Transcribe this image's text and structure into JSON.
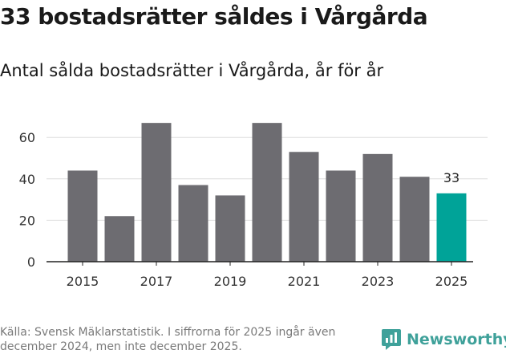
{
  "header": {
    "title": "33 bostadsrätter såldes i Vårgårda",
    "subtitle": "Antal sålda bostadsrätter i Vårgårda, år för år"
  },
  "footer": {
    "source": "Källa: Svensk Mäklarstatistik. I siffrorna för 2025 ingår även december 2024, men inte december 2025.",
    "brand": "Newsworthy"
  },
  "colors": {
    "bar": "#6d6c71",
    "highlight": "#00a398",
    "grid": "#dddddd",
    "brand": "#3fa19a"
  },
  "icons": {
    "brand_logo": "newsworthy-logo-icon"
  },
  "chart_data": {
    "type": "bar",
    "title": "33 bostadsrätter såldes i Vårgårda",
    "subtitle": "Antal sålda bostadsrätter i Vårgårda, år för år",
    "xlabel": "",
    "ylabel": "",
    "categories": [
      2015,
      2016,
      2017,
      2018,
      2019,
      2020,
      2021,
      2022,
      2023,
      2024,
      2025
    ],
    "values": [
      44,
      22,
      67,
      37,
      32,
      67,
      53,
      44,
      52,
      41,
      33
    ],
    "highlight_category": 2025,
    "ylim": [
      0,
      70
    ],
    "yticks": [
      0,
      20,
      40,
      60
    ],
    "xtick_labels": [
      "2015",
      "2017",
      "2019",
      "2021",
      "2023",
      "2025"
    ],
    "data_labels": [
      {
        "category": 2025,
        "text": "33"
      }
    ],
    "grid": true
  }
}
